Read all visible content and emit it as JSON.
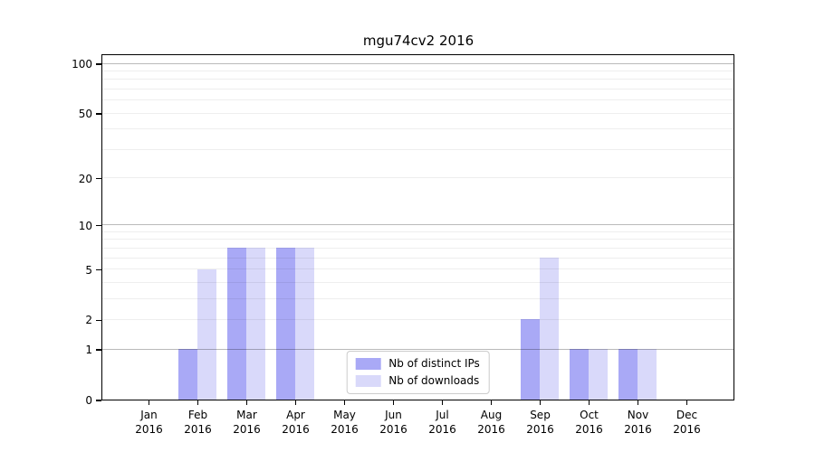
{
  "title": "mgu74cv2 2016",
  "chart_data": {
    "type": "bar",
    "title": "mgu74cv2 2016",
    "categories": [
      "Jan",
      "Feb",
      "Mar",
      "Apr",
      "May",
      "Jun",
      "Jul",
      "Aug",
      "Sep",
      "Oct",
      "Nov",
      "Dec"
    ],
    "x_year_label": "2016",
    "series": [
      {
        "name": "Nb of distinct IPs",
        "color": "#a9a9f6",
        "values": [
          0,
          1,
          7,
          7,
          0,
          0,
          0,
          0,
          2,
          1,
          1,
          0
        ]
      },
      {
        "name": "Nb of downloads",
        "color": "#d9d9fa",
        "values": [
          0,
          5,
          7,
          7,
          0,
          0,
          0,
          0,
          6,
          1,
          1,
          0
        ]
      }
    ],
    "y_axis": {
      "scale": "log1p",
      "tick_labels": [
        "0",
        "1",
        "2",
        "5",
        "10",
        "20",
        "50",
        "100"
      ],
      "tick_values": [
        0,
        1,
        2,
        5,
        10,
        20,
        50,
        100
      ],
      "major_grid_values": [
        1,
        10,
        100
      ],
      "minor_grid_values": [
        2,
        3,
        4,
        5,
        6,
        7,
        8,
        9,
        20,
        30,
        40,
        50,
        60,
        70,
        80,
        90
      ],
      "min": 0,
      "max": 100
    },
    "legend": {
      "position": "lower center",
      "entries": [
        "Nb of distinct IPs",
        "Nb of downloads"
      ]
    },
    "grid": true
  },
  "colors": {
    "background": "#ffffff",
    "bar_distinct_ips": "#a9a9f6",
    "bar_downloads": "#d9d9fa",
    "grid_minor": "#ededed",
    "grid_major": "#bababa",
    "spine": "#000000",
    "text": "#000000"
  }
}
